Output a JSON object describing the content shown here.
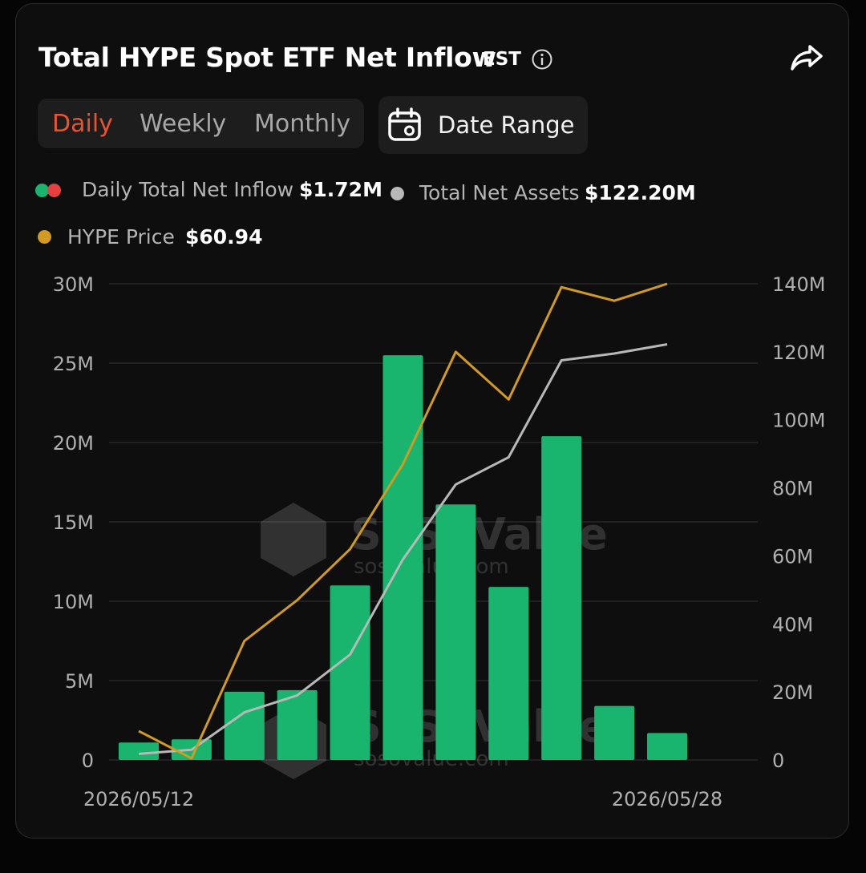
{
  "header": {
    "title": "Total HYPE Spot ETF Net Inflow",
    "timezone": "EST"
  },
  "tabs": [
    "Daily",
    "Weekly",
    "Monthly"
  ],
  "active_tab": "Daily",
  "date_range_label": "Date Range",
  "legend": {
    "inflow_label": "Daily Total Net Inflow",
    "inflow_value": "$1.72M",
    "assets_label": "Total Net Assets",
    "assets_value": "$122.20M",
    "price_label": "HYPE Price",
    "price_value": "$60.94"
  },
  "watermark": {
    "brand": "SoSoValue",
    "url": "sosovalue.com"
  },
  "colors": {
    "accent": "#e8542f",
    "bar": "#19b46e",
    "assets_line": "#b8b8b8",
    "price_line": "#d29a1f",
    "inflow_dot_pos": "#19b46e",
    "inflow_dot_neg": "#e84040"
  },
  "chart_data": {
    "type": "bar",
    "x_first_label": "2026/05/12",
    "x_last_label": "2026/05/28",
    "left_axis": {
      "ticks": [
        "0",
        "5M",
        "10M",
        "15M",
        "20M",
        "25M",
        "30M"
      ],
      "ylim": [
        0,
        30
      ]
    },
    "right_axis": {
      "ticks": [
        "0",
        "20M",
        "40M",
        "60M",
        "80M",
        "100M",
        "120M",
        "140M"
      ],
      "ylim": [
        0,
        140
      ]
    },
    "grid": true,
    "series": [
      {
        "name": "Daily Total Net Inflow",
        "type": "bar",
        "axis": "left",
        "unit": "M",
        "values": [
          1.1,
          1.3,
          4.3,
          4.4,
          11.0,
          25.5,
          16.1,
          10.9,
          20.4,
          3.4,
          1.7
        ]
      },
      {
        "name": "Total Net Assets",
        "type": "line",
        "axis": "right",
        "unit": "M",
        "values": [
          1.8,
          3.0,
          14.0,
          19.0,
          31.0,
          59.0,
          81.0,
          89.0,
          117.5,
          119.5,
          122.2
        ]
      },
      {
        "name": "HYPE Price",
        "type": "line",
        "axis": "right",
        "values": [
          8.5,
          0.5,
          35.0,
          47.0,
          62.0,
          87.0,
          120.0,
          106.0,
          139.0,
          135.0,
          140.0
        ]
      }
    ]
  }
}
